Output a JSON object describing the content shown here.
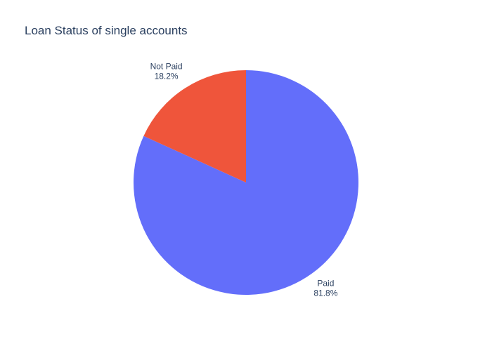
{
  "chart_data": {
    "type": "pie",
    "title": "Loan Status of single accounts",
    "slices": [
      {
        "label": "Paid",
        "percent_label": "81.8%",
        "value": 81.8,
        "color": "#636efa"
      },
      {
        "label": "Not Paid",
        "percent_label": "18.2%",
        "value": 18.2,
        "color": "#ef553b"
      }
    ],
    "direction": "clockwise",
    "start_angle": "12 o'clock",
    "labels_position": "outside",
    "legend": "none"
  }
}
